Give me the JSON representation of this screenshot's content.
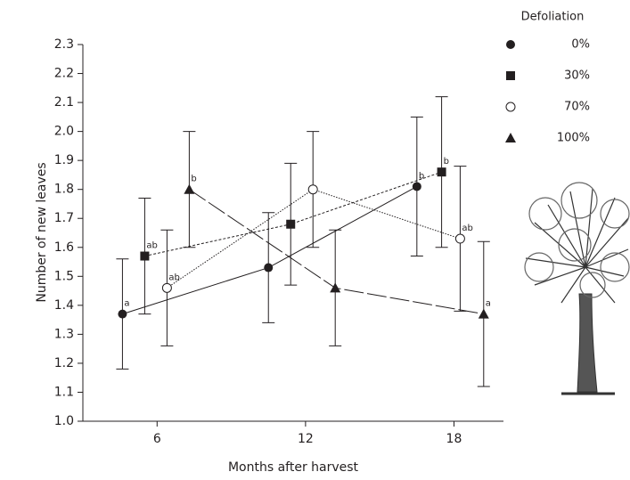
{
  "chart_data": {
    "type": "line",
    "x_label": "Months after harvest",
    "y_label": "Number of new leaves",
    "legend_title": "Defoliation",
    "xlim": [
      3,
      20
    ],
    "xticks": [
      6,
      12,
      18
    ],
    "ylim": [
      1.0,
      2.3
    ],
    "yticks": [
      {
        "value": 1.0,
        "label": "1.0"
      },
      1.1,
      1.2,
      1.3,
      1.4,
      1.5,
      1.6,
      1.7,
      1.8,
      1.9,
      {
        "value": 2.0,
        "label": "2.0"
      },
      2.1,
      2.2,
      2.3
    ],
    "series": [
      {
        "name": "0%",
        "color": "#231f20",
        "marker": "circle",
        "dash": "solid",
        "x": [
          4.6,
          10.5,
          16.5
        ],
        "values": [
          1.37,
          1.53,
          1.81
        ],
        "errors": [
          0.19,
          0.19,
          0.24
        ],
        "labels": [
          "a",
          null,
          "b"
        ]
      },
      {
        "name": "30%",
        "color": "#231f20",
        "marker": "square",
        "dash": "short-dash",
        "x": [
          5.5,
          11.4,
          17.5
        ],
        "values": [
          1.57,
          1.68,
          1.86
        ],
        "errors": [
          0.2,
          0.21,
          0.26
        ],
        "labels": [
          "ab",
          null,
          "b"
        ]
      },
      {
        "name": "70%",
        "color": "#231f20",
        "marker": "open-circle",
        "dash": "dotted",
        "x": [
          6.4,
          12.3,
          18.25
        ],
        "values": [
          1.46,
          1.8,
          1.63
        ],
        "errors": [
          0.2,
          0.2,
          0.25
        ],
        "labels": [
          "ab",
          null,
          "ab"
        ]
      },
      {
        "name": "100%",
        "color": "#231f20",
        "marker": "triangle",
        "dash": "long-dash",
        "x": [
          7.3,
          13.2,
          19.2
        ],
        "values": [
          1.8,
          1.46,
          1.37
        ],
        "errors": [
          0.2,
          0.2,
          0.25
        ],
        "labels": [
          "b",
          null,
          "a"
        ]
      }
    ]
  }
}
